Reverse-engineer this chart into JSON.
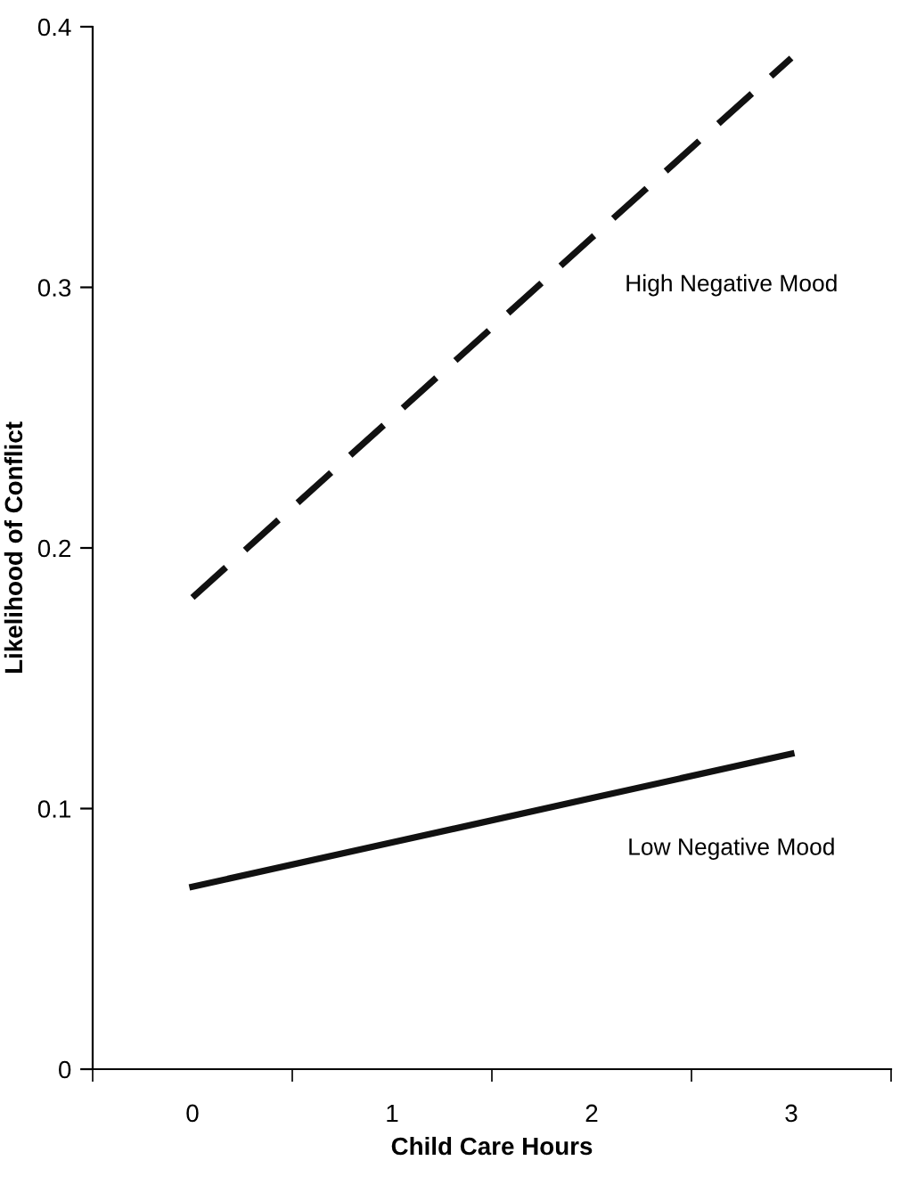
{
  "chart_data": {
    "type": "line",
    "xlabel": "Child Care Hours",
    "ylabel": "Likelihood of Conflict",
    "categories": [
      "0",
      "1",
      "2",
      "3"
    ],
    "series": [
      {
        "name": "Low Negative Mood",
        "color": "#111111",
        "values": [
          0.07,
          0.087,
          0.104,
          0.121
        ],
        "line_style": "solid"
      },
      {
        "name": "High Negative Mood",
        "color": "#111111",
        "values": [
          0.181,
          0.25,
          0.319,
          0.388
        ],
        "line_style": "dashed"
      }
    ],
    "ylim": [
      0,
      0.4
    ],
    "yticks": [
      0,
      0.1,
      0.2,
      0.3,
      0.4
    ],
    "grid": false,
    "legend": false,
    "marker": "none"
  }
}
